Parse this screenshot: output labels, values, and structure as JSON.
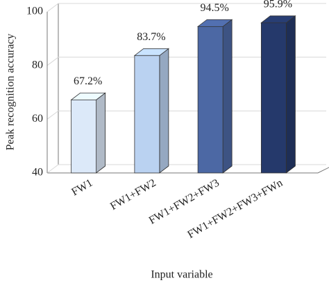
{
  "chart_data": {
    "type": "bar3d",
    "y_label": "Peak recognition accuracy",
    "x_label": "Input variable",
    "categories": [
      "FW1",
      "FW1+FW2",
      "FW1+FW2+FW3",
      "FW1+FW2+FW3+FWn"
    ],
    "values": [
      67.2,
      83.7,
      94.5,
      95.9
    ],
    "value_labels": [
      "67.2%",
      "83.7%",
      "94.5%",
      "95.9%"
    ],
    "colors": [
      "#dce9f9",
      "#bad2f1",
      "#4c68a4",
      "#25396b"
    ],
    "ylim": [
      40,
      100
    ],
    "yticks": [
      40,
      60,
      80,
      100
    ],
    "grid": true
  }
}
